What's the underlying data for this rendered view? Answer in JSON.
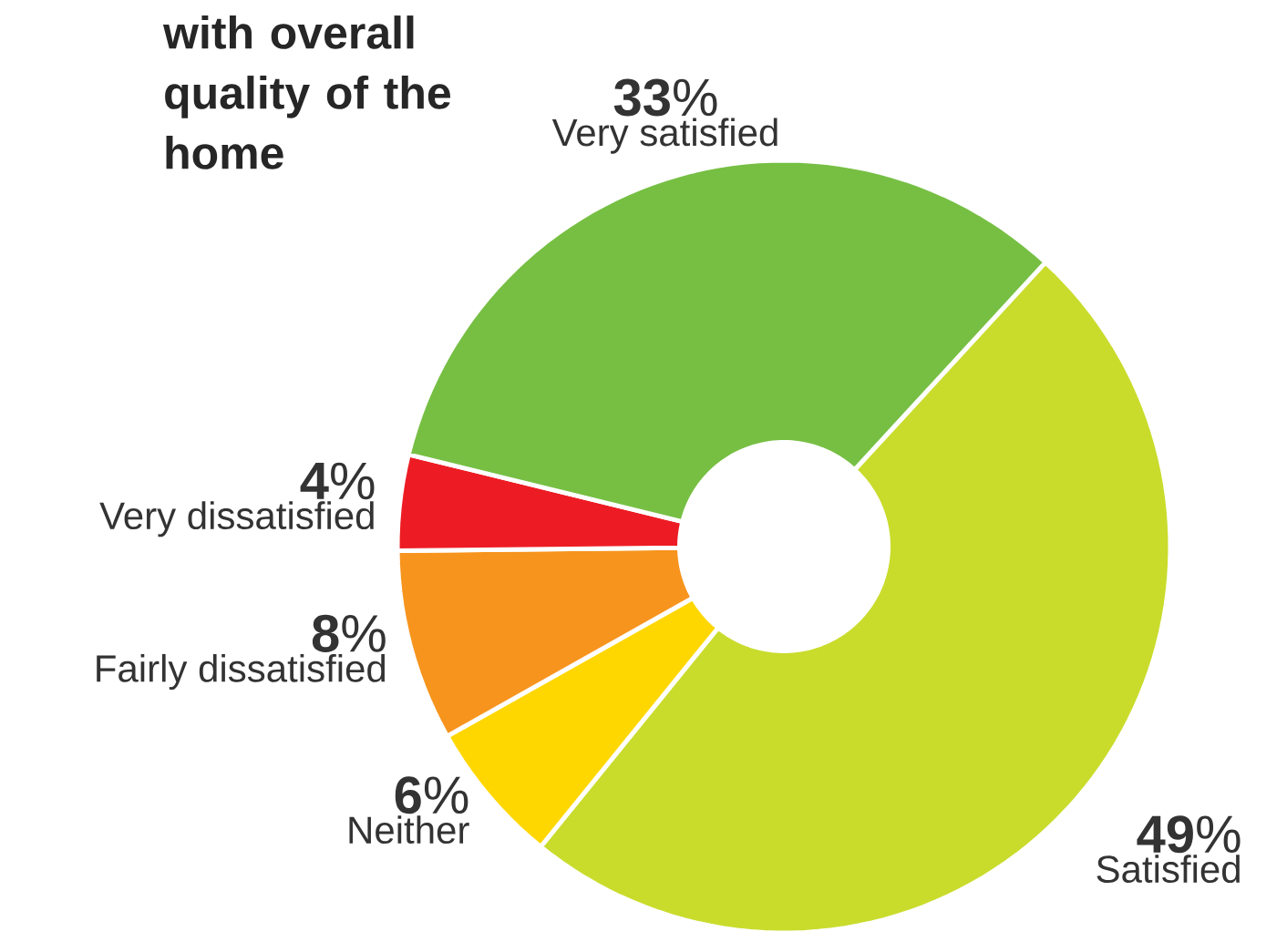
{
  "chart_data": {
    "type": "donut",
    "title": "with overall quality of the home",
    "categories": [
      "Satisfied",
      "Neither",
      "Fairly dissatisfied",
      "Very dissatisfied",
      "Very satisfied"
    ],
    "values": [
      49,
      6,
      8,
      4,
      33
    ],
    "colors": [
      "#c9dc2c",
      "#ffd700",
      "#f7941d",
      "#ed1c24",
      "#76bf43"
    ],
    "value_labels": [
      "**49**%",
      "**6**%",
      "**8**%",
      "**4**%",
      "**33**%"
    ]
  }
}
